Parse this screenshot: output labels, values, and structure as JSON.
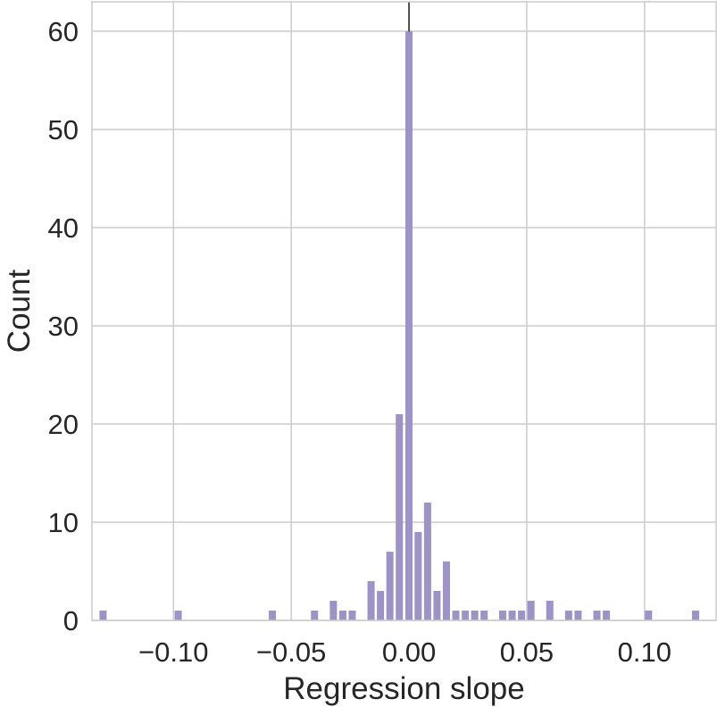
{
  "chart_data": {
    "type": "bar",
    "title": "",
    "xlabel": "Regression slope",
    "ylabel": "Count",
    "xlim": [
      -0.1346,
      0.1304
    ],
    "ylim": [
      0,
      63
    ],
    "grid": true,
    "legend": "none",
    "bar_color": "#9d93c5",
    "grid_color": "#cccccc",
    "reference_line": {
      "x": 0.0,
      "color": "#000000"
    },
    "x_ticks": [
      {
        "value": -0.1,
        "label": "−0.10"
      },
      {
        "value": -0.05,
        "label": "−0.05"
      },
      {
        "value": 0.0,
        "label": "0.00"
      },
      {
        "value": 0.05,
        "label": "0.05"
      },
      {
        "value": 0.1,
        "label": "0.10"
      }
    ],
    "y_ticks": [
      {
        "value": 0,
        "label": "0"
      },
      {
        "value": 10,
        "label": "10"
      },
      {
        "value": 20,
        "label": "20"
      },
      {
        "value": 30,
        "label": "30"
      },
      {
        "value": 40,
        "label": "40"
      },
      {
        "value": 50,
        "label": "50"
      },
      {
        "value": 60,
        "label": "60"
      }
    ],
    "bin_width": 0.0033,
    "bins": [
      {
        "x": -0.1299,
        "count": 1
      },
      {
        "x": -0.098,
        "count": 1
      },
      {
        "x": -0.058,
        "count": 1
      },
      {
        "x": -0.0401,
        "count": 1
      },
      {
        "x": -0.0321,
        "count": 2
      },
      {
        "x": -0.0281,
        "count": 1
      },
      {
        "x": -0.0241,
        "count": 1
      },
      {
        "x": -0.0161,
        "count": 4
      },
      {
        "x": -0.0121,
        "count": 3
      },
      {
        "x": -0.0081,
        "count": 7
      },
      {
        "x": -0.0041,
        "count": 21
      },
      {
        "x": 0.0,
        "count": 60
      },
      {
        "x": 0.0039,
        "count": 9
      },
      {
        "x": 0.0079,
        "count": 12
      },
      {
        "x": 0.0119,
        "count": 3
      },
      {
        "x": 0.0159,
        "count": 6
      },
      {
        "x": 0.0199,
        "count": 1
      },
      {
        "x": 0.0239,
        "count": 1
      },
      {
        "x": 0.0279,
        "count": 1
      },
      {
        "x": 0.0319,
        "count": 1
      },
      {
        "x": 0.0398,
        "count": 1
      },
      {
        "x": 0.0438,
        "count": 1
      },
      {
        "x": 0.0478,
        "count": 1
      },
      {
        "x": 0.0518,
        "count": 2
      },
      {
        "x": 0.0598,
        "count": 2
      },
      {
        "x": 0.0678,
        "count": 1
      },
      {
        "x": 0.0718,
        "count": 1
      },
      {
        "x": 0.0798,
        "count": 1
      },
      {
        "x": 0.0838,
        "count": 1
      },
      {
        "x": 0.1017,
        "count": 1
      },
      {
        "x": 0.1217,
        "count": 1
      }
    ]
  }
}
